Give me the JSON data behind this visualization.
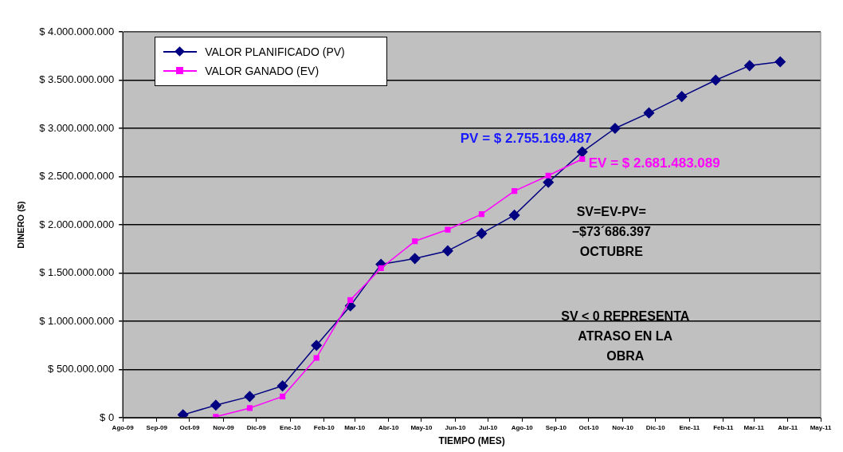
{
  "chart_data": {
    "type": "line",
    "xlabel": "TIEMPO (MES)",
    "ylabel": "DINERO ($)",
    "xlim": [
      "2009-08-01",
      "2011-05-01"
    ],
    "xticks": [
      {
        "value": "2009-08-01",
        "label": "Ago-09"
      },
      {
        "value": "2009-09-01",
        "label": "Sep-09"
      },
      {
        "value": "2009-10-01",
        "label": "Oct-09"
      },
      {
        "value": "2009-11-01",
        "label": "Nov-09"
      },
      {
        "value": "2009-12-01",
        "label": "Dic-09"
      },
      {
        "value": "2010-01-01",
        "label": "Ene-10"
      },
      {
        "value": "2010-02-01",
        "label": "Feb-10"
      },
      {
        "value": "2010-03-01",
        "label": "Mar-10"
      },
      {
        "value": "2010-04-01",
        "label": "Abr-10"
      },
      {
        "value": "2010-05-01",
        "label": "May-10"
      },
      {
        "value": "2010-06-01",
        "label": "Jun-10"
      },
      {
        "value": "2010-07-01",
        "label": "Jul-10"
      },
      {
        "value": "2010-08-01",
        "label": "Ago-10"
      },
      {
        "value": "2010-09-01",
        "label": "Sep-10"
      },
      {
        "value": "2010-10-01",
        "label": "Oct-10"
      },
      {
        "value": "2010-11-01",
        "label": "Nov-10"
      },
      {
        "value": "2010-12-01",
        "label": "Dic-10"
      },
      {
        "value": "2011-01-01",
        "label": "Ene-11"
      },
      {
        "value": "2011-02-01",
        "label": "Feb-11"
      },
      {
        "value": "2011-03-01",
        "label": "Mar-11"
      },
      {
        "value": "2011-04-01",
        "label": "Abr-11"
      },
      {
        "value": "2011-05-01",
        "label": "May-11"
      }
    ],
    "ylim": [
      0,
      4000000000
    ],
    "yticks": [
      {
        "value": 0,
        "label": "$ 0"
      },
      {
        "value": 500000000,
        "label": "$ 500.000.000"
      },
      {
        "value": 1000000000,
        "label": "$ 1.000.000.000"
      },
      {
        "value": 1500000000,
        "label": "$ 1.500.000.000"
      },
      {
        "value": 2000000000,
        "label": "$ 2.000.000.000"
      },
      {
        "value": 2500000000,
        "label": "$ 2.500.000.000"
      },
      {
        "value": 3000000000,
        "label": "$ 3.000.000.000"
      },
      {
        "value": 3500000000,
        "label": "$ 3.500.000.000"
      },
      {
        "value": 4000000000,
        "label": "$ 4.000.000.000"
      }
    ],
    "grid": "y",
    "legend": "top left",
    "line_style": "solid",
    "series": [
      {
        "name": "VALOR PLANIFICADO (PV)",
        "color": "#000080",
        "marker": "diamond",
        "x": [
          "2009-09-25",
          "2009-10-25",
          "2009-11-25",
          "2009-12-25",
          "2010-01-25",
          "2010-02-25",
          "2010-03-25",
          "2010-04-25",
          "2010-05-25",
          "2010-06-25",
          "2010-07-25",
          "2010-08-25",
          "2010-09-25",
          "2010-10-25",
          "2010-11-25",
          "2010-12-25",
          "2011-01-25",
          "2011-02-25",
          "2011-03-25"
        ],
        "values": [
          30000000,
          130000000,
          220000000,
          330000000,
          750000000,
          1160000000,
          1590000000,
          1650000000,
          1730000000,
          1910000000,
          2100000000,
          2440000000,
          2755169487,
          3000000000,
          3160000000,
          3330000000,
          3500000000,
          3650000000,
          3690000000
        ]
      },
      {
        "name": "VALOR GANADO (EV)",
        "color": "#ff00ff",
        "marker": "square",
        "x": [
          "2009-10-25",
          "2009-11-25",
          "2009-12-25",
          "2010-01-25",
          "2010-02-25",
          "2010-03-25",
          "2010-04-25",
          "2010-05-25",
          "2010-06-25",
          "2010-07-25",
          "2010-08-25",
          "2010-09-25"
        ],
        "values": [
          10000000,
          100000000,
          220000000,
          620000000,
          1220000000,
          1550000000,
          1830000000,
          1950000000,
          2110000000,
          2350000000,
          2510000000,
          2681483089
        ]
      }
    ],
    "annotations": [
      {
        "text": "PV = $ 2.755.169.487",
        "x": "2010-09-25",
        "y": 2755169487
      },
      {
        "text": "EV = $ 2.681.483.089",
        "x": "2010-09-25",
        "y": 2681483089
      },
      "SV=EV-PV=\n−$73´686.397\nOCTUBRE",
      "SV < 0 REPRESENTA\nATRASO EN LA\nOBRA"
    ]
  }
}
